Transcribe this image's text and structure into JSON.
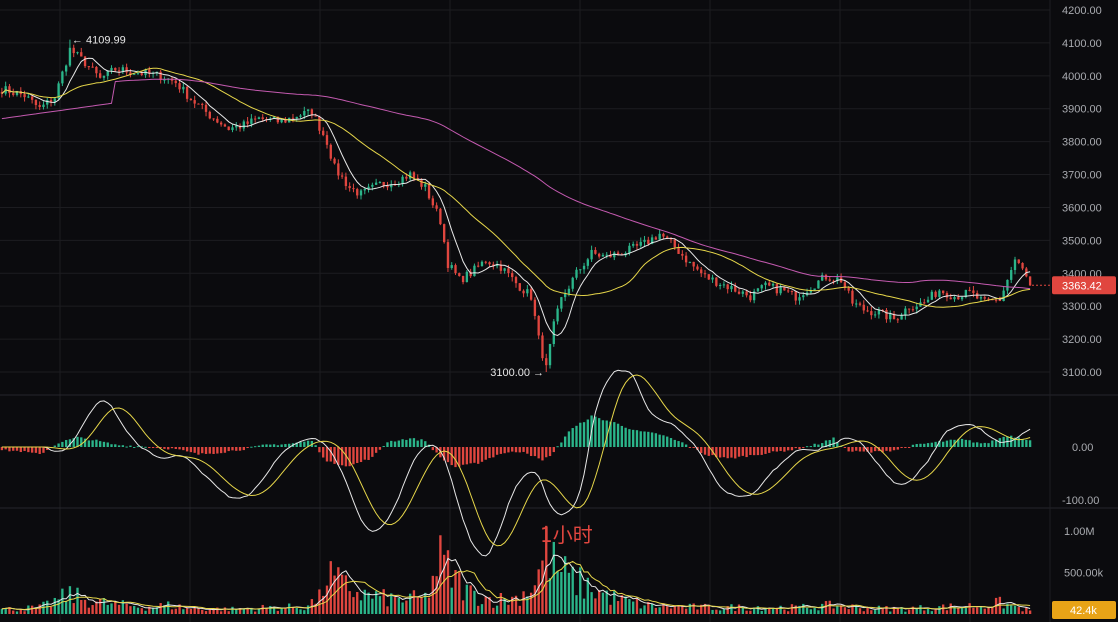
{
  "chart_data": {
    "type": "candlestick",
    "timeframe_label": "1小时",
    "colors": {
      "up": "#2bb58a",
      "down": "#e0463f",
      "ma_short": "#e8e8e8",
      "ma_mid": "#e6d64a",
      "ma_long": "#c45ab0",
      "grid": "#1c1c20",
      "last_price_badge": "#e0463f",
      "last_volume_badge": "#e8a317"
    },
    "price_axis": {
      "ticks": [
        "4200.00",
        "4100.00",
        "4000.00",
        "3900.00",
        "3800.00",
        "3700.00",
        "3600.00",
        "3500.00",
        "3400.00",
        "3300.00",
        "3200.00",
        "3100.00"
      ],
      "range": [
        3050,
        4200
      ]
    },
    "macd_axis": {
      "ticks": [
        "0.00",
        "-100.00"
      ],
      "range": [
        -130,
        75
      ]
    },
    "volume_axis": {
      "ticks": [
        "1.00M",
        "500.00k"
      ],
      "range": [
        0,
        1000000
      ]
    },
    "annotations": {
      "high_label": "4109.99",
      "high_value": 4109.99,
      "low_label": "3100.00",
      "low_value": 3100.0
    },
    "last_price": {
      "label": "3363.42",
      "value": 3363.42
    },
    "last_volume": {
      "label": "42.4k",
      "value": 42400
    },
    "price_key_points": [
      [
        0,
        3960
      ],
      [
        6,
        3940
      ],
      [
        10,
        3900
      ],
      [
        14,
        3935
      ],
      [
        18,
        4080
      ],
      [
        22,
        4040
      ],
      [
        26,
        3990
      ],
      [
        30,
        4020
      ],
      [
        36,
        4010
      ],
      [
        42,
        4000
      ],
      [
        46,
        3980
      ],
      [
        50,
        3930
      ],
      [
        55,
        3880
      ],
      [
        60,
        3840
      ],
      [
        64,
        3850
      ],
      [
        68,
        3870
      ],
      [
        74,
        3860
      ],
      [
        78,
        3880
      ],
      [
        82,
        3890
      ],
      [
        86,
        3800
      ],
      [
        88,
        3720
      ],
      [
        92,
        3660
      ],
      [
        95,
        3640
      ],
      [
        100,
        3670
      ],
      [
        104,
        3680
      ],
      [
        108,
        3700
      ],
      [
        112,
        3660
      ],
      [
        116,
        3560
      ],
      [
        118,
        3430
      ],
      [
        121,
        3380
      ],
      [
        124,
        3400
      ],
      [
        128,
        3440
      ],
      [
        132,
        3420
      ],
      [
        136,
        3370
      ],
      [
        140,
        3330
      ],
      [
        142,
        3200
      ],
      [
        144,
        3110
      ],
      [
        146,
        3240
      ],
      [
        148,
        3320
      ],
      [
        152,
        3400
      ],
      [
        156,
        3460
      ],
      [
        160,
        3450
      ],
      [
        166,
        3470
      ],
      [
        170,
        3490
      ],
      [
        174,
        3520
      ],
      [
        178,
        3480
      ],
      [
        182,
        3430
      ],
      [
        186,
        3390
      ],
      [
        190,
        3370
      ],
      [
        194,
        3350
      ],
      [
        198,
        3330
      ],
      [
        202,
        3360
      ],
      [
        206,
        3350
      ],
      [
        210,
        3330
      ],
      [
        214,
        3360
      ],
      [
        218,
        3390
      ],
      [
        222,
        3380
      ],
      [
        225,
        3310
      ],
      [
        228,
        3290
      ],
      [
        232,
        3280
      ],
      [
        236,
        3260
      ],
      [
        240,
        3300
      ],
      [
        244,
        3310
      ],
      [
        248,
        3350
      ],
      [
        252,
        3330
      ],
      [
        256,
        3340
      ],
      [
        260,
        3310
      ],
      [
        264,
        3320
      ],
      [
        266,
        3380
      ],
      [
        268,
        3440
      ],
      [
        270,
        3410
      ],
      [
        272,
        3363.42
      ]
    ],
    "macd_hist_key_points": [
      [
        0,
        -6
      ],
      [
        5,
        -8
      ],
      [
        10,
        -14
      ],
      [
        15,
        8
      ],
      [
        20,
        18
      ],
      [
        25,
        12
      ],
      [
        30,
        4
      ],
      [
        40,
        0
      ],
      [
        46,
        -4
      ],
      [
        52,
        -14
      ],
      [
        58,
        -10
      ],
      [
        64,
        -4
      ],
      [
        70,
        4
      ],
      [
        76,
        6
      ],
      [
        82,
        12
      ],
      [
        86,
        -28
      ],
      [
        92,
        -36
      ],
      [
        98,
        -20
      ],
      [
        102,
        10
      ],
      [
        108,
        16
      ],
      [
        112,
        12
      ],
      [
        116,
        -20
      ],
      [
        120,
        -38
      ],
      [
        126,
        -30
      ],
      [
        132,
        -12
      ],
      [
        138,
        -8
      ],
      [
        143,
        -26
      ],
      [
        146,
        -10
      ],
      [
        150,
        30
      ],
      [
        156,
        58
      ],
      [
        162,
        46
      ],
      [
        168,
        30
      ],
      [
        174,
        24
      ],
      [
        180,
        8
      ],
      [
        186,
        -14
      ],
      [
        192,
        -22
      ],
      [
        198,
        -16
      ],
      [
        204,
        -10
      ],
      [
        210,
        -4
      ],
      [
        216,
        6
      ],
      [
        220,
        16
      ],
      [
        224,
        -8
      ],
      [
        230,
        -10
      ],
      [
        236,
        -6
      ],
      [
        242,
        4
      ],
      [
        248,
        10
      ],
      [
        254,
        14
      ],
      [
        260,
        6
      ],
      [
        266,
        22
      ],
      [
        272,
        14
      ]
    ],
    "volume_key_points": [
      [
        0,
        60000
      ],
      [
        10,
        80000
      ],
      [
        14,
        160000
      ],
      [
        18,
        250000
      ],
      [
        22,
        180000
      ],
      [
        30,
        120000
      ],
      [
        38,
        90000
      ],
      [
        44,
        110000
      ],
      [
        50,
        70000
      ],
      [
        60,
        60000
      ],
      [
        70,
        80000
      ],
      [
        80,
        90000
      ],
      [
        84,
        200000
      ],
      [
        86,
        500000
      ],
      [
        90,
        360000
      ],
      [
        96,
        240000
      ],
      [
        104,
        180000
      ],
      [
        112,
        200000
      ],
      [
        116,
        680000
      ],
      [
        120,
        430000
      ],
      [
        124,
        260000
      ],
      [
        130,
        180000
      ],
      [
        136,
        200000
      ],
      [
        140,
        340000
      ],
      [
        142,
        520000
      ],
      [
        144,
        820000
      ],
      [
        146,
        620000
      ],
      [
        150,
        450000
      ],
      [
        156,
        320000
      ],
      [
        162,
        200000
      ],
      [
        170,
        110000
      ],
      [
        180,
        90000
      ],
      [
        190,
        80000
      ],
      [
        200,
        90000
      ],
      [
        210,
        80000
      ],
      [
        220,
        110000
      ],
      [
        230,
        70000
      ],
      [
        240,
        70000
      ],
      [
        250,
        90000
      ],
      [
        260,
        110000
      ],
      [
        264,
        140000
      ],
      [
        268,
        90000
      ],
      [
        272,
        42400
      ]
    ],
    "candle_count": 273,
    "grid": true
  }
}
